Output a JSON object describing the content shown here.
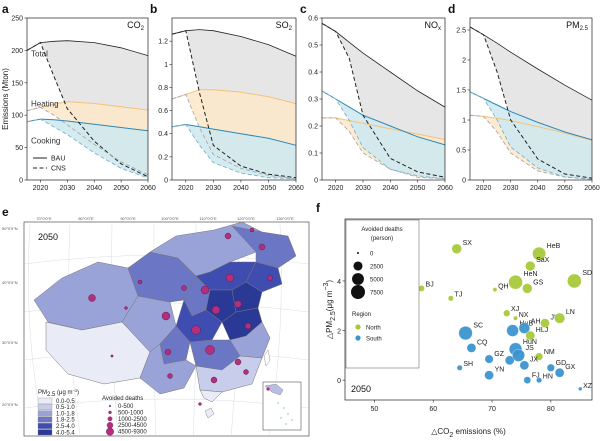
{
  "colors": {
    "total_fill": "#e6e6e6",
    "heating_fill": "#fbe7c9",
    "heating_line": "#f5c27a",
    "cooking_fill": "#cfe9ef",
    "cooking_line": "#2f86b4",
    "north": "#a6c93a",
    "south": "#3b95cf",
    "map_ocean": "#ffffff",
    "province_marker": "#b0307e",
    "pm_colors": [
      "#e9ecf7",
      "#c7cdea",
      "#9aa3d8",
      "#6b76c4",
      "#3f4db0",
      "#2a3896"
    ]
  },
  "chart_data": [
    {
      "type": "area",
      "panel": "a",
      "title": "CO",
      "title_sub": "2",
      "xlabel": "",
      "ylabel": "Emissions (Mton)",
      "xlim": [
        2015,
        2060
      ],
      "ylim": [
        0,
        250
      ],
      "xticks": [
        2020,
        2030,
        2040,
        2050,
        2060
      ],
      "yticks": [
        0,
        50,
        100,
        150,
        200,
        250
      ],
      "annotations": [
        "Total",
        "Heating",
        "Cooking"
      ],
      "legend": [
        {
          "label": "BAU",
          "style": "solid"
        },
        {
          "label": "CNS",
          "style": "dashed"
        }
      ],
      "legend_position": "bottom-left",
      "series": [
        {
          "name": "Total",
          "style": "solid",
          "x": [
            2015,
            2020,
            2025,
            2030,
            2040,
            2050,
            2060
          ],
          "values": [
            200,
            212,
            214,
            215,
            212,
            204,
            192
          ]
        },
        {
          "name": "Heating",
          "style": "solid",
          "x": [
            2015,
            2020,
            2025,
            2030,
            2040,
            2050,
            2060
          ],
          "values": [
            107,
            112,
            117,
            121,
            118,
            113,
            108
          ]
        },
        {
          "name": "Cooking",
          "style": "solid",
          "x": [
            2015,
            2020,
            2025,
            2030,
            2040,
            2050,
            2060
          ],
          "values": [
            90,
            94,
            93,
            91,
            86,
            81,
            76
          ]
        },
        {
          "name": "Total",
          "style": "dashed",
          "x": [
            2015,
            2020,
            2025,
            2030,
            2040,
            2050,
            2060
          ],
          "values": [
            200,
            212,
            160,
            110,
            60,
            25,
            5
          ]
        },
        {
          "name": "Heating",
          "style": "dashed",
          "x": [
            2015,
            2020,
            2025,
            2030,
            2040,
            2050,
            2060
          ],
          "values": [
            107,
            112,
            100,
            85,
            55,
            28,
            8
          ]
        },
        {
          "name": "Cooking",
          "style": "dashed",
          "x": [
            2015,
            2020,
            2025,
            2030,
            2040,
            2050,
            2060
          ],
          "values": [
            90,
            94,
            82,
            70,
            42,
            18,
            3
          ]
        }
      ]
    },
    {
      "type": "area",
      "panel": "b",
      "title": "SO",
      "title_sub": "2",
      "xlim": [
        2015,
        2060
      ],
      "ylim": [
        0,
        1.4
      ],
      "xticks": [
        2020,
        2030,
        2040,
        2050,
        2060
      ],
      "yticks": [
        0,
        0.2,
        0.4,
        0.6,
        0.8,
        1.0,
        1.2
      ],
      "series": [
        {
          "name": "Total",
          "style": "solid",
          "x": [
            2015,
            2020,
            2025,
            2030,
            2040,
            2050,
            2060
          ],
          "values": [
            1.26,
            1.29,
            1.3,
            1.29,
            1.24,
            1.17,
            1.07
          ]
        },
        {
          "name": "Heating",
          "style": "solid",
          "x": [
            2015,
            2020,
            2025,
            2030,
            2040,
            2050,
            2060
          ],
          "values": [
            0.7,
            0.74,
            0.78,
            0.78,
            0.76,
            0.72,
            0.66
          ]
        },
        {
          "name": "Cooking",
          "style": "solid",
          "x": [
            2015,
            2020,
            2025,
            2030,
            2040,
            2050,
            2060
          ],
          "values": [
            0.46,
            0.48,
            0.46,
            0.44,
            0.4,
            0.36,
            0.3
          ]
        },
        {
          "name": "Total",
          "style": "dashed",
          "x": [
            2015,
            2020,
            2025,
            2030,
            2040,
            2050,
            2060
          ],
          "values": [
            1.26,
            1.29,
            0.75,
            0.3,
            0.12,
            0.05,
            0.02
          ]
        },
        {
          "name": "Heating",
          "style": "dashed",
          "x": [
            2015,
            2020,
            2025,
            2030,
            2040,
            2050,
            2060
          ],
          "values": [
            0.7,
            0.74,
            0.45,
            0.22,
            0.1,
            0.04,
            0.01
          ]
        },
        {
          "name": "Cooking",
          "style": "dashed",
          "x": [
            2015,
            2020,
            2025,
            2030,
            2040,
            2050,
            2060
          ],
          "values": [
            0.46,
            0.48,
            0.3,
            0.15,
            0.06,
            0.02,
            0.01
          ]
        }
      ]
    },
    {
      "type": "area",
      "panel": "c",
      "title": "NO",
      "title_sub": "x",
      "xlim": [
        2015,
        2060
      ],
      "ylim": [
        0,
        0.6
      ],
      "xticks": [
        2020,
        2030,
        2040,
        2050,
        2060
      ],
      "yticks": [
        0,
        0.1,
        0.2,
        0.3,
        0.4,
        0.5,
        0.6
      ],
      "series": [
        {
          "name": "Total",
          "style": "solid",
          "x": [
            2015,
            2020,
            2025,
            2030,
            2040,
            2050,
            2060
          ],
          "values": [
            0.58,
            0.55,
            0.51,
            0.47,
            0.4,
            0.33,
            0.27
          ]
        },
        {
          "name": "Heating",
          "style": "solid",
          "x": [
            2015,
            2020,
            2025,
            2030,
            2040,
            2050,
            2060
          ],
          "values": [
            0.23,
            0.23,
            0.22,
            0.21,
            0.19,
            0.17,
            0.15
          ]
        },
        {
          "name": "Cooking",
          "style": "solid",
          "x": [
            2015,
            2020,
            2025,
            2030,
            2040,
            2050,
            2060
          ],
          "values": [
            0.33,
            0.3,
            0.27,
            0.24,
            0.2,
            0.16,
            0.13
          ]
        },
        {
          "name": "Total",
          "style": "dashed",
          "x": [
            2015,
            2020,
            2025,
            2030,
            2040,
            2050,
            2060
          ],
          "values": [
            0.58,
            0.55,
            0.45,
            0.24,
            0.08,
            0.03,
            0.01
          ]
        },
        {
          "name": "Heating",
          "style": "dashed",
          "x": [
            2015,
            2020,
            2025,
            2030,
            2040,
            2050,
            2060
          ],
          "values": [
            0.23,
            0.23,
            0.18,
            0.1,
            0.04,
            0.01,
            0.005
          ]
        },
        {
          "name": "Cooking",
          "style": "dashed",
          "x": [
            2015,
            2020,
            2025,
            2030,
            2040,
            2050,
            2060
          ],
          "values": [
            0.33,
            0.3,
            0.22,
            0.12,
            0.04,
            0.015,
            0.005
          ]
        }
      ]
    },
    {
      "type": "area",
      "panel": "d",
      "title": "PM",
      "title_sub": "2.5",
      "xlim": [
        2015,
        2060
      ],
      "ylim": [
        0,
        2.7
      ],
      "xticks": [
        2020,
        2030,
        2040,
        2050,
        2060
      ],
      "yticks": [
        0,
        0.5,
        1.0,
        1.5,
        2.0,
        2.5
      ],
      "series": [
        {
          "name": "Total",
          "style": "solid",
          "x": [
            2015,
            2020,
            2025,
            2030,
            2040,
            2050,
            2060
          ],
          "values": [
            2.55,
            2.42,
            2.28,
            2.13,
            1.85,
            1.58,
            1.33
          ]
        },
        {
          "name": "Heating",
          "style": "solid",
          "x": [
            2015,
            2020,
            2025,
            2030,
            2040,
            2050,
            2060
          ],
          "values": [
            1.08,
            1.06,
            1.03,
            0.99,
            0.89,
            0.78,
            0.66
          ]
        },
        {
          "name": "Cooking",
          "style": "solid",
          "x": [
            2015,
            2020,
            2025,
            2030,
            2040,
            2050,
            2060
          ],
          "values": [
            1.47,
            1.36,
            1.25,
            1.14,
            0.96,
            0.8,
            0.67
          ]
        },
        {
          "name": "Total",
          "style": "dashed",
          "x": [
            2015,
            2020,
            2025,
            2030,
            2040,
            2050,
            2060
          ],
          "values": [
            2.55,
            2.42,
            1.8,
            1.0,
            0.35,
            0.1,
            0.03
          ]
        },
        {
          "name": "Heating",
          "style": "dashed",
          "x": [
            2015,
            2020,
            2025,
            2030,
            2040,
            2050,
            2060
          ],
          "values": [
            1.08,
            1.06,
            0.8,
            0.45,
            0.15,
            0.05,
            0.01
          ]
        },
        {
          "name": "Cooking",
          "style": "dashed",
          "x": [
            2015,
            2020,
            2025,
            2030,
            2040,
            2050,
            2060
          ],
          "values": [
            1.47,
            1.36,
            1.0,
            0.55,
            0.2,
            0.05,
            0.01
          ]
        }
      ]
    },
    {
      "type": "scatter",
      "panel": "f",
      "year": "2050",
      "xlabel": "△CO",
      "xlabel_sub": "2",
      "xlabel_tail": " emissions (%)",
      "ylabel": "△PM",
      "ylabel_sub": "2.5",
      "ylabel_tail": "(μg m",
      "ylabel_sup": "−3",
      "ylabel_close": ")",
      "xlim": [
        45,
        87
      ],
      "ylim": [
        -0.8,
        6.5
      ],
      "xticks": [
        50,
        60,
        70,
        80
      ],
      "yticks": [
        0,
        2,
        4
      ],
      "size_legend_title": "Avoided deaths",
      "size_legend_unit": "(person)",
      "size_legend": [
        {
          "label": "0",
          "value": 0
        },
        {
          "label": "2500",
          "value": 2500
        },
        {
          "label": "5000",
          "value": 5000
        },
        {
          "label": "7500",
          "value": 7500
        }
      ],
      "region_legend_title": "Region",
      "regions": [
        {
          "name": "North",
          "color": "#a6c93a"
        },
        {
          "name": "South",
          "color": "#3b95cf"
        }
      ],
      "points": [
        {
          "label": "SX",
          "x": 64,
          "y": 5.3,
          "deaths": 3000,
          "region": "North"
        },
        {
          "label": "HeB",
          "x": 78,
          "y": 5.1,
          "deaths": 6500,
          "region": "North"
        },
        {
          "label": "SaX",
          "x": 76.5,
          "y": 4.6,
          "deaths": 3000,
          "region": "North"
        },
        {
          "label": "HeN",
          "x": 74,
          "y": 3.95,
          "deaths": 7500,
          "region": "North"
        },
        {
          "label": "SD",
          "x": 84,
          "y": 4.0,
          "deaths": 7500,
          "region": "North"
        },
        {
          "label": "GS",
          "x": 76,
          "y": 3.7,
          "deaths": 3000,
          "region": "North"
        },
        {
          "label": "QH",
          "x": 70.5,
          "y": 3.65,
          "deaths": 200,
          "region": "North"
        },
        {
          "label": "BJ",
          "x": 58,
          "y": 3.7,
          "deaths": 800,
          "region": "North"
        },
        {
          "label": "TJ",
          "x": 63,
          "y": 3.3,
          "deaths": 500,
          "region": "North"
        },
        {
          "label": "XJ",
          "x": 72.5,
          "y": 2.7,
          "deaths": 1000,
          "region": "North"
        },
        {
          "label": "NX",
          "x": 74,
          "y": 2.5,
          "deaths": 200,
          "region": "North"
        },
        {
          "label": "JL",
          "x": 79,
          "y": 2.3,
          "deaths": 2500,
          "region": "North"
        },
        {
          "label": "LN",
          "x": 81.5,
          "y": 2.5,
          "deaths": 3500,
          "region": "North"
        },
        {
          "label": "HuB",
          "x": 73.5,
          "y": 2.0,
          "deaths": 5000,
          "region": "South"
        },
        {
          "label": "AH",
          "x": 75.5,
          "y": 2.1,
          "deaths": 4000,
          "region": "South"
        },
        {
          "label": "SC",
          "x": 65.5,
          "y": 1.9,
          "deaths": 7000,
          "region": "South"
        },
        {
          "label": "HLJ",
          "x": 76.5,
          "y": 1.8,
          "deaths": 2500,
          "region": "North"
        },
        {
          "label": "CQ",
          "x": 66.5,
          "y": 1.3,
          "deaths": 2500,
          "region": "South"
        },
        {
          "label": "HuN",
          "x": 74,
          "y": 1.25,
          "deaths": 6000,
          "region": "South"
        },
        {
          "label": "GZ",
          "x": 69.5,
          "y": 0.85,
          "deaths": 2000,
          "region": "South"
        },
        {
          "label": "ZJ",
          "x": 73,
          "y": 0.8,
          "deaths": 2500,
          "region": "South"
        },
        {
          "label": "JS",
          "x": 74.5,
          "y": 1.0,
          "deaths": 5500,
          "region": "South"
        },
        {
          "label": "NM",
          "x": 78,
          "y": 0.95,
          "deaths": 1500,
          "region": "North"
        },
        {
          "label": "JX",
          "x": 75.5,
          "y": 0.6,
          "deaths": 2500,
          "region": "South"
        },
        {
          "label": "SH",
          "x": 64.5,
          "y": 0.5,
          "deaths": 500,
          "region": "South"
        },
        {
          "label": "GD",
          "x": 80,
          "y": 0.5,
          "deaths": 1500,
          "region": "South"
        },
        {
          "label": "GX",
          "x": 81.5,
          "y": 0.3,
          "deaths": 2500,
          "region": "South"
        },
        {
          "label": "YN",
          "x": 69.5,
          "y": 0.2,
          "deaths": 2500,
          "region": "South"
        },
        {
          "label": "FJ",
          "x": 76,
          "y": 0.0,
          "deaths": 1200,
          "region": "South"
        },
        {
          "label": "HN",
          "x": 78,
          "y": 0.0,
          "deaths": 500,
          "region": "South"
        },
        {
          "label": "XZ",
          "x": 85,
          "y": -0.35,
          "deaths": 100,
          "region": "South"
        }
      ]
    }
  ],
  "map": {
    "panel": "e",
    "year": "2050",
    "lon_labels": [
      "70°0'0\"E",
      "80°0'0\"E",
      "90°0'0\"E",
      "100°0'0\"E",
      "110°0'0\"E",
      "120°0'0\"E",
      "130°0'0\"E",
      "140°0'0\"E"
    ],
    "lat_labels": [
      "50°0'0\"N",
      "40°0'0\"N",
      "30°0'0\"N",
      "20°0'0\"N"
    ],
    "pm_legend_title": "PM",
    "pm_legend_sub": "2.5",
    "pm_legend_unit": " (μg m",
    "pm_legend_sup": "−3",
    "pm_legend_close": ")",
    "pm_bins": [
      "0.0-0.5",
      "0.5-1.0",
      "1.0-1.8",
      "1.8-2.5",
      "2.5-4.0",
      "4.0-5.4"
    ],
    "deaths_legend_title": "Avoided deaths",
    "deaths_bins": [
      "0-500",
      "500-1000",
      "1000-2500",
      "2500-4500",
      "4500-9300"
    ]
  }
}
